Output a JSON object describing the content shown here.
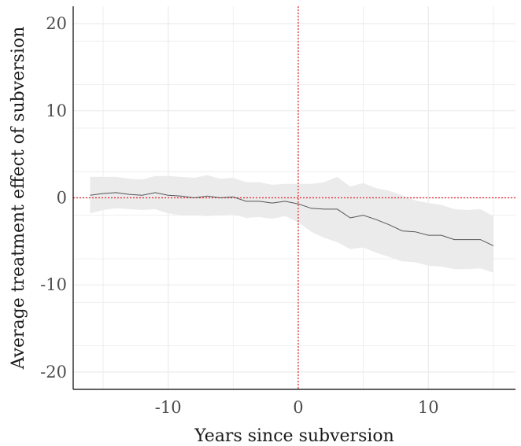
{
  "chart_data": {
    "type": "line",
    "title": "",
    "xlabel": "Years since subversion",
    "ylabel": "Average treatment effect of subversion",
    "xlim": [
      -17.3,
      16.7
    ],
    "ylim": [
      -22,
      22
    ],
    "x_ticks": [
      -10,
      0,
      10
    ],
    "x_tick_labels": [
      "-10",
      "0",
      "10"
    ],
    "y_ticks": [
      -20,
      -10,
      0,
      10,
      20
    ],
    "y_tick_labels": [
      "-20",
      "-10",
      "0",
      "10",
      "20"
    ],
    "grid": true,
    "reference_lines": {
      "vertical_x": 0,
      "horizontal_y": 0,
      "color": "#e3242b",
      "style": "dotted"
    },
    "colors": {
      "line": "#555555",
      "band": "#ebebeb",
      "grid": "#ebebeb"
    },
    "series": [
      {
        "x": [
          -16,
          -15,
          -14,
          -13,
          -12,
          -11,
          -10,
          -9,
          -8,
          -7,
          -6,
          -5,
          -4,
          -3,
          -2,
          -1,
          0,
          1,
          2,
          3,
          4,
          5,
          6,
          7,
          8,
          9,
          10,
          11,
          12,
          13,
          14,
          15
        ],
        "values": [
          0.3,
          0.5,
          0.6,
          0.4,
          0.3,
          0.6,
          0.3,
          0.2,
          0.0,
          0.2,
          0.0,
          0.1,
          -0.4,
          -0.4,
          -0.6,
          -0.4,
          -0.7,
          -1.2,
          -1.3,
          -1.3,
          -2.3,
          -2.0,
          -2.5,
          -3.1,
          -3.8,
          -3.9,
          -4.3,
          -4.3,
          -4.8,
          -4.8,
          -4.8,
          -5.5
        ],
        "lower": [
          -1.8,
          -1.4,
          -1.2,
          -1.3,
          -1.4,
          -1.3,
          -1.8,
          -2.0,
          -2.0,
          -2.1,
          -2.0,
          -1.9,
          -2.3,
          -2.2,
          -2.4,
          -2.1,
          -2.8,
          -3.9,
          -4.6,
          -5.1,
          -5.9,
          -5.7,
          -6.3,
          -6.8,
          -7.3,
          -7.4,
          -7.8,
          -7.9,
          -8.2,
          -8.2,
          -8.1,
          -8.6
        ],
        "upper": [
          2.4,
          2.4,
          2.4,
          2.2,
          2.1,
          2.5,
          2.5,
          2.4,
          2.3,
          2.6,
          2.2,
          2.3,
          1.8,
          1.8,
          1.5,
          1.6,
          1.6,
          1.6,
          1.8,
          2.4,
          1.3,
          1.7,
          1.1,
          0.8,
          0.3,
          -0.3,
          -0.6,
          -0.8,
          -1.3,
          -1.4,
          -1.3,
          -2.1
        ]
      }
    ]
  }
}
